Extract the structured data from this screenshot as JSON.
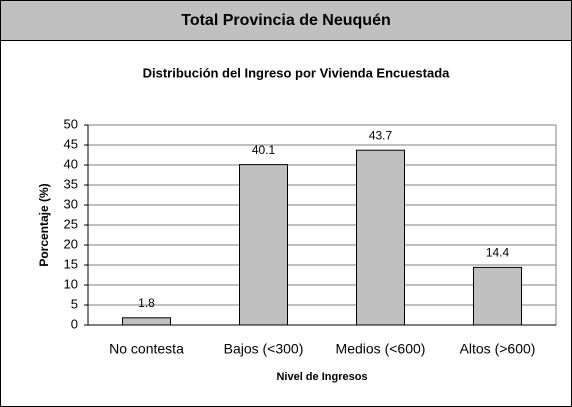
{
  "header": {
    "title": "Total Provincia de Neuquén"
  },
  "chart_data": {
    "type": "bar",
    "title": "Distribución del Ingreso por Vivienda Encuestada",
    "x_label": "Nivel de Ingresos",
    "y_label": "Porcentaje (%)",
    "categories": [
      "No contesta",
      "Bajos (<300)",
      "Medios (<600)",
      "Altos (>600)"
    ],
    "values": [
      1.8,
      40.1,
      43.7,
      14.4
    ],
    "color": "#c0c0c0",
    "ylim": [
      0,
      50
    ],
    "yticks": [
      0,
      5,
      10,
      15,
      20,
      25,
      30,
      35,
      40,
      45,
      50
    ],
    "grid": true
  }
}
